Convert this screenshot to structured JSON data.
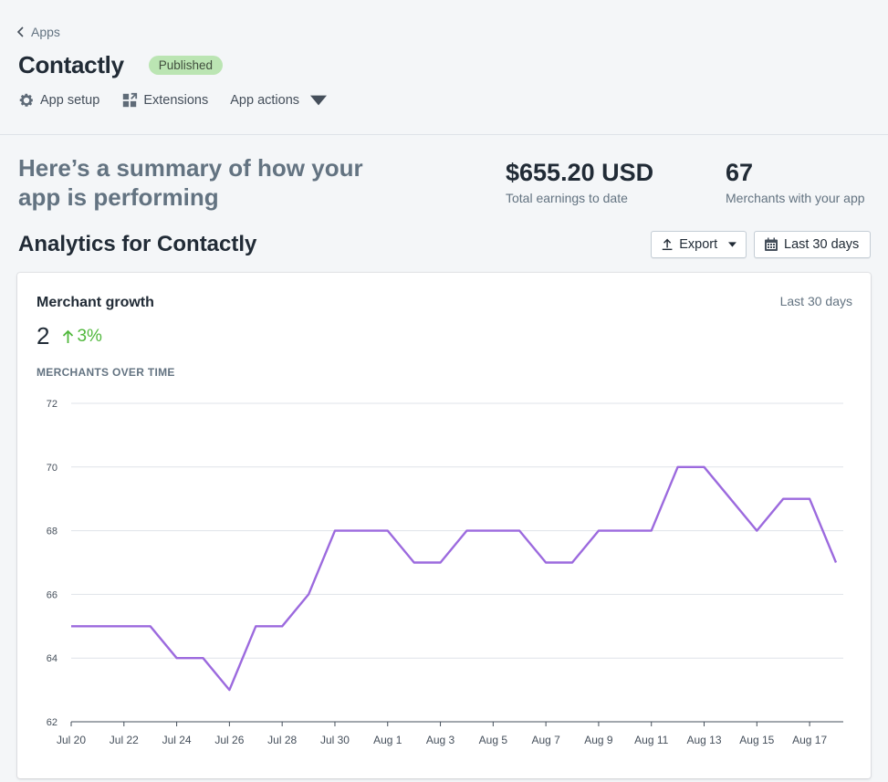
{
  "breadcrumb": {
    "label": "Apps"
  },
  "app": {
    "name": "Contactly",
    "status": "Published"
  },
  "actions": {
    "setup": "App setup",
    "extensions": "Extensions",
    "more": "App actions"
  },
  "summary": {
    "heading": "Here’s a summary of how your app is performing",
    "earnings": {
      "value": "$655.20 USD",
      "label": "Total earnings to date"
    },
    "merchants": {
      "value": "67",
      "label": "Merchants with your app"
    }
  },
  "analytics": {
    "title": "Analytics for Contactly",
    "export_label": "Export",
    "range_label": "Last 30 days"
  },
  "card": {
    "title": "Merchant growth",
    "range": "Last 30 days",
    "metric_value": "2",
    "metric_change": "3%",
    "chart_heading": "MERCHANTS OVER TIME"
  },
  "colors": {
    "line": "#9c6ade",
    "positive": "#50b83c",
    "badge": "#bbe5b3"
  },
  "chart_data": {
    "type": "line",
    "title": "MERCHANTS OVER TIME",
    "x": [
      "Jul 20",
      "Jul 21",
      "Jul 22",
      "Jul 23",
      "Jul 24",
      "Jul 25",
      "Jul 26",
      "Jul 27",
      "Jul 28",
      "Jul 29",
      "Jul 30",
      "Jul 31",
      "Aug 1",
      "Aug 2",
      "Aug 3",
      "Aug 4",
      "Aug 5",
      "Aug 6",
      "Aug 7",
      "Aug 8",
      "Aug 9",
      "Aug 10",
      "Aug 11",
      "Aug 12",
      "Aug 13",
      "Aug 14",
      "Aug 15",
      "Aug 16",
      "Aug 17",
      "Aug 18"
    ],
    "x_ticks": [
      "Jul 20",
      "Jul 22",
      "Jul 24",
      "Jul 26",
      "Jul 28",
      "Jul 30",
      "Aug 1",
      "Aug 3",
      "Aug 5",
      "Aug 7",
      "Aug 9",
      "Aug 11",
      "Aug 13",
      "Aug 15",
      "Aug 17"
    ],
    "series": [
      {
        "values": [
          65,
          65,
          65,
          65,
          64,
          64,
          63,
          65,
          65,
          66,
          68,
          68,
          68,
          67,
          67,
          68,
          68,
          68,
          67,
          67,
          68,
          68,
          68,
          70,
          70,
          69,
          68,
          69,
          69,
          67
        ]
      }
    ],
    "y_ticks": [
      62,
      64,
      66,
      68,
      70,
      72
    ],
    "ylim": [
      62,
      72
    ],
    "grid": true
  }
}
